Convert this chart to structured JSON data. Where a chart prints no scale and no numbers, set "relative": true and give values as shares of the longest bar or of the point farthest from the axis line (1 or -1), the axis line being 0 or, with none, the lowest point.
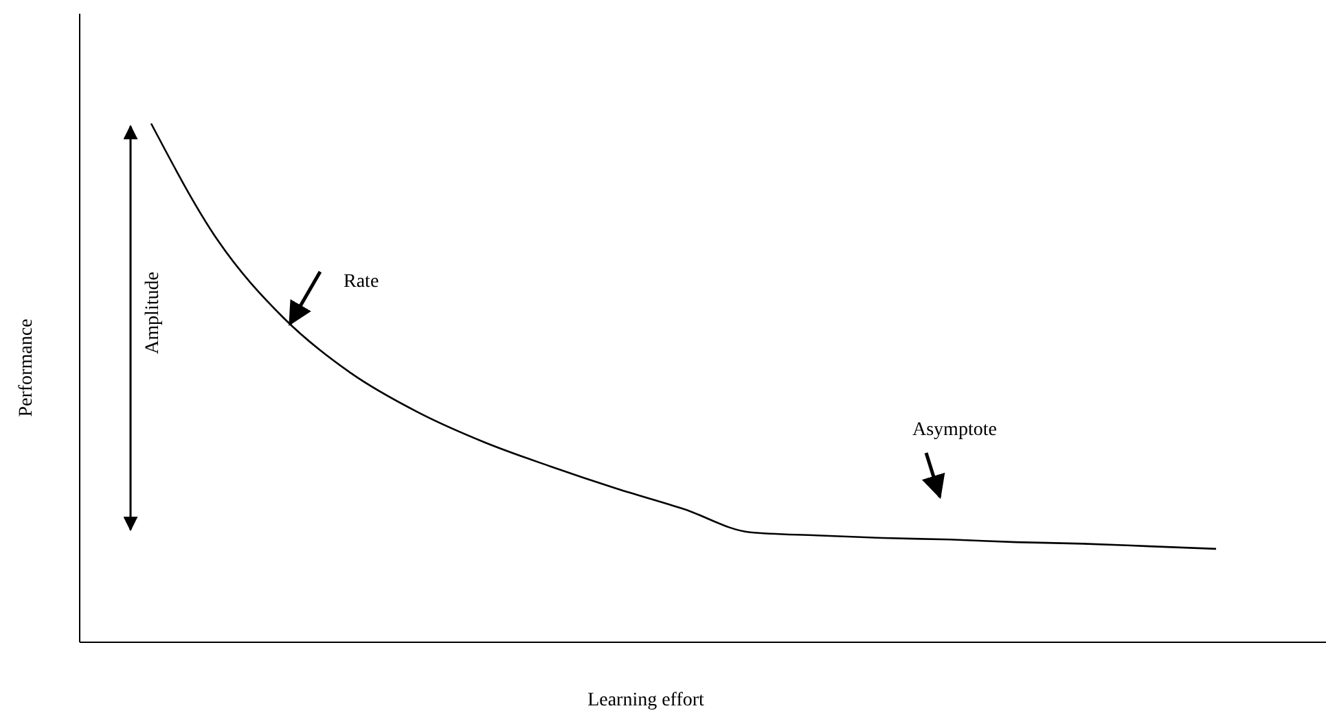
{
  "chart_data": {
    "type": "line",
    "xlabel": "Learning effort",
    "ylabel": "Performance",
    "relative": true,
    "marker": "none",
    "line_style": "solid",
    "categories": [
      null,
      null,
      null,
      null,
      null,
      null,
      null,
      null,
      null,
      null,
      null,
      null,
      null,
      null,
      null,
      null,
      null
    ],
    "series": [
      {
        "color": "#000000",
        "values": [
          1,
          0.775,
          0.624,
          0.519,
          0.444,
          0.386,
          0.339,
          0.296,
          0.257,
          0.212,
          0.206,
          0.201,
          0.198,
          0.193,
          0.19,
          0.185,
          0.18
        ]
      }
    ],
    "annotations": [
      "Amplitude",
      "Rate",
      "Asymptote"
    ]
  }
}
